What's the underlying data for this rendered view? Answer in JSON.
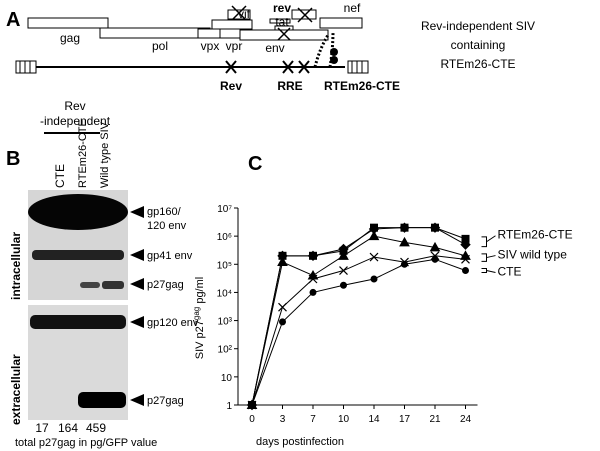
{
  "panel_a": {
    "label": "A",
    "genes": {
      "gag": "gag",
      "pol": "pol",
      "vif": "vif",
      "vpx": "vpx",
      "vpr": "vpr",
      "rev": "rev",
      "tat": "tat",
      "env": "env",
      "nef": "nef"
    },
    "elements": [
      "Rev",
      "RRE",
      "RTEm26-CTE"
    ],
    "description": [
      "Rev-independent SIV",
      "containing",
      "RTEm26-CTE"
    ]
  },
  "panel_b": {
    "label": "B",
    "group_label": [
      "Rev",
      "-independent"
    ],
    "lanes": [
      "CTE",
      "RTEm26-CTE",
      "Wild type SIV"
    ],
    "sections": [
      "intracellular",
      "extracellular"
    ],
    "bands": [
      [
        "gp160/",
        "120 env"
      ],
      [
        "gp41 env"
      ],
      [
        "p27gag"
      ],
      [
        "gp120 env"
      ],
      [
        "p27gag"
      ]
    ],
    "values": [
      17,
      164,
      459
    ],
    "footer": "total p27gag in pg/GFP value"
  },
  "chart_data": {
    "type": "line",
    "label": "C",
    "xlabel": "days postinfection",
    "ylabel": [
      "SIV p27",
      "gag",
      " pg/ml"
    ],
    "categories": [
      "0",
      "3",
      "7",
      "10",
      "14",
      "17",
      "21",
      "24"
    ],
    "ylim": [
      1,
      10000000
    ],
    "log_y": true,
    "yticks": [
      1,
      10,
      {
        "value": 100,
        "label": "10²"
      },
      {
        "value": 1000,
        "label": "10³"
      },
      {
        "value": 10000,
        "label": "10⁴"
      },
      {
        "value": 100000,
        "label": "10⁵"
      },
      {
        "value": 1000000,
        "label": "10⁶"
      },
      {
        "value": 10000000,
        "label": "10⁷"
      }
    ],
    "legend": [
      "RTEm26-CTE",
      "SIV wild type",
      "CTE"
    ],
    "series": [
      {
        "group": 0,
        "marker": "square",
        "color": "#000000",
        "values": [
          1,
          200000,
          200000,
          300000,
          2000000,
          2000000,
          2000000,
          800000
        ]
      },
      {
        "group": 0,
        "marker": "diamond",
        "color": "#000000",
        "values": [
          1,
          200000,
          200000,
          350000,
          1800000,
          2000000,
          2000000,
          500000
        ]
      },
      {
        "group": 1,
        "marker": "triangle",
        "color": "#000000",
        "values": [
          1,
          120000,
          40000,
          200000,
          1000000,
          600000,
          400000,
          200000
        ]
      },
      {
        "group": 1,
        "marker": "cross",
        "color": "#000000",
        "values": [
          1,
          3000,
          30000,
          60000,
          180000,
          120000,
          200000,
          150000
        ]
      },
      {
        "group": 2,
        "marker": "circle",
        "color": "#000000",
        "values": [
          1,
          900,
          10000,
          18000,
          30000,
          100000,
          150000,
          60000
        ]
      }
    ]
  }
}
